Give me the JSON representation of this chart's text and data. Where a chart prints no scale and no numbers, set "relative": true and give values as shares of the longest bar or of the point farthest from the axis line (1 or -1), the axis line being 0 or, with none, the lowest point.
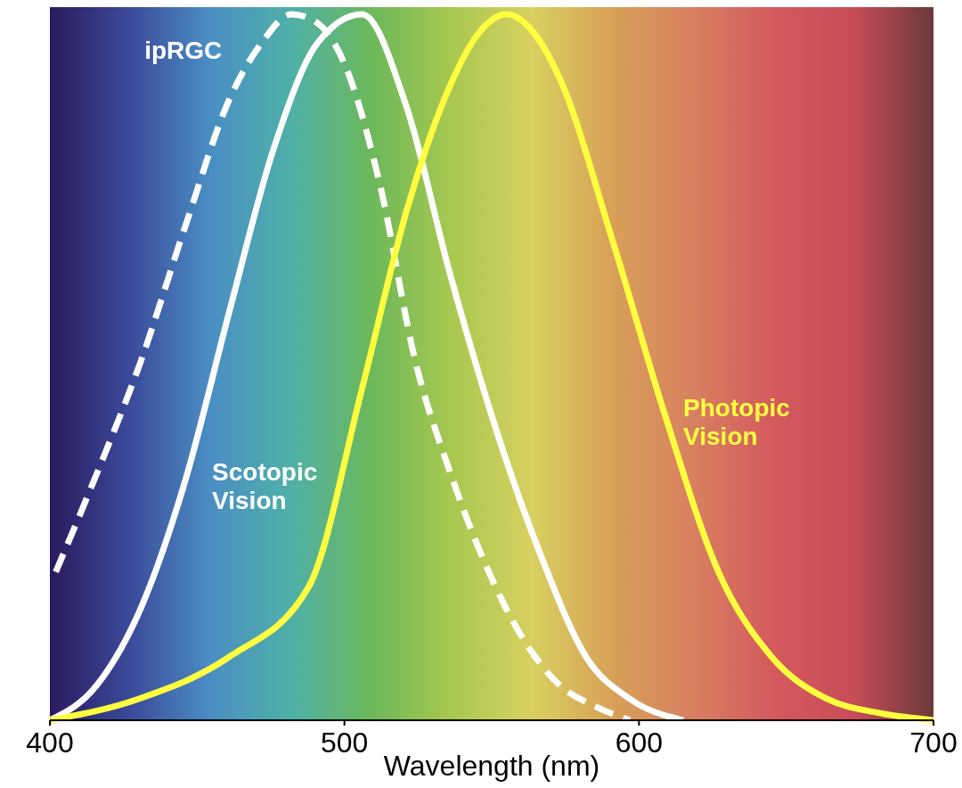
{
  "chart_data": {
    "type": "line",
    "relative": true,
    "xlabel": "Wavelength (nm)",
    "xlim": [
      400,
      700
    ],
    "xticks": [
      400,
      500,
      600,
      700
    ],
    "grid": false,
    "marker": "none",
    "series": [
      {
        "name": "ipRGC",
        "color": "#ffffff",
        "line_style": "dashed",
        "x": [
          402,
          416,
          431,
          446,
          461,
          472,
          482,
          490,
          500,
          512,
          524,
          536,
          548,
          560,
          573,
          585,
          597
        ],
        "values": [
          0.21,
          0.35,
          0.51,
          0.7,
          0.88,
          0.96,
          1,
          0.99,
          0.93,
          0.76,
          0.51,
          0.35,
          0.22,
          0.12,
          0.05,
          0.02,
          0
        ]
      },
      {
        "name": "Scotopic Vision",
        "color": "#ffffff",
        "line_style": "solid",
        "x": [
          400,
          416,
          431,
          446,
          461,
          476,
          491,
          506,
          521,
          536,
          554,
          567,
          582,
          597,
          615
        ],
        "values": [
          0,
          0.05,
          0.16,
          0.34,
          0.58,
          0.81,
          0.96,
          1,
          0.87,
          0.63,
          0.38,
          0.23,
          0.09,
          0.03,
          0
        ]
      },
      {
        "name": "Photopic Vision",
        "color": "#ffff40",
        "line_style": "solid",
        "x": [
          400,
          430,
          461,
          488,
          506,
          521,
          536,
          545,
          555,
          565,
          573,
          591,
          609,
          627,
          645,
          664,
          682,
          700
        ],
        "values": [
          0,
          0.03,
          0.09,
          0.19,
          0.47,
          0.72,
          0.9,
          0.97,
          1,
          0.97,
          0.91,
          0.68,
          0.43,
          0.21,
          0.09,
          0.03,
          0.01,
          0
        ]
      }
    ]
  }
}
